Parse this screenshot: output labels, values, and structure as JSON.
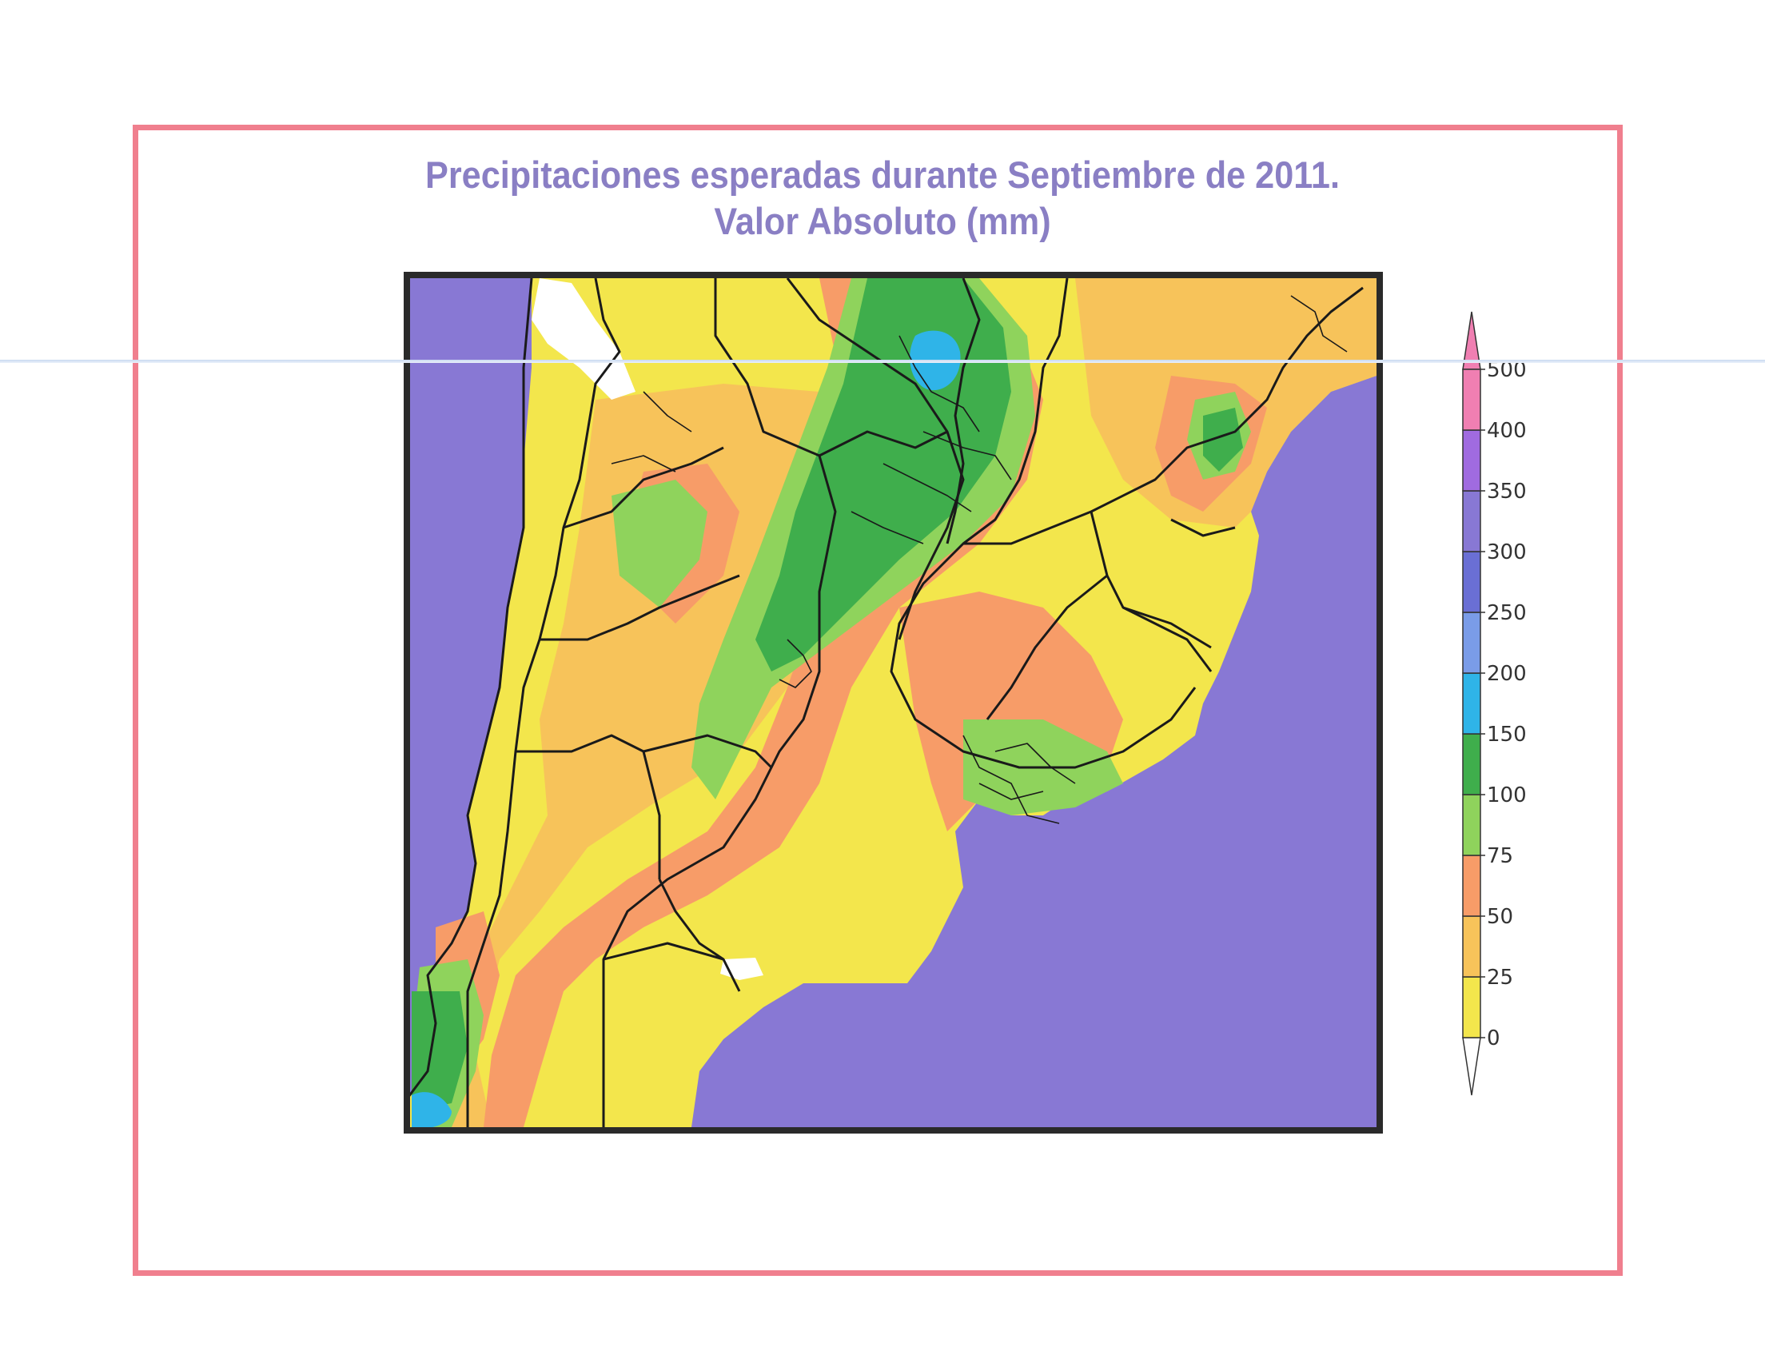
{
  "title": {
    "line1": "Precipitaciones esperadas durante  Septiembre de 2011.",
    "line2": "Valor Absoluto (mm)"
  },
  "legend": {
    "ticks": [
      "0",
      "25",
      "50",
      "75",
      "100",
      "150",
      "200",
      "250",
      "300",
      "350",
      "400",
      "500"
    ],
    "colors": [
      "#f3e64c",
      "#f7c35a",
      "#f79c68",
      "#8fd35c",
      "#3fae4c",
      "#2fb4e8",
      "#7a9ce8",
      "#6a6fd4",
      "#8878d4",
      "#a06be0",
      "#f07fb2"
    ]
  },
  "colors": {
    "ocean": "#8878d4",
    "frame": "#f07f8e",
    "title": "#8a7fc4",
    "boundary": "#1a1a1a"
  }
}
